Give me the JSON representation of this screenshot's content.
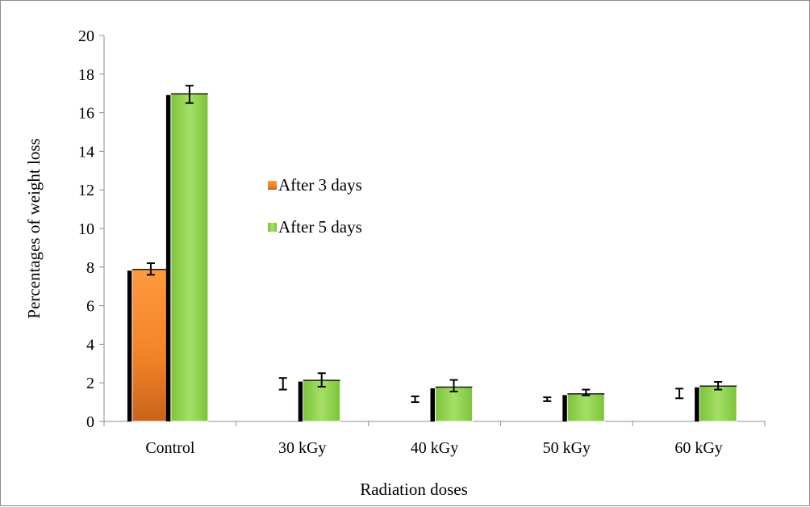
{
  "chart_data": {
    "type": "bar",
    "title": "",
    "xlabel": "Radiation doses",
    "ylabel": "Percentages of weight loss",
    "ylim": [
      0,
      20
    ],
    "yticks": [
      0,
      2,
      4,
      6,
      8,
      10,
      12,
      14,
      16,
      18,
      20
    ],
    "grid": false,
    "legend_position": "center-left",
    "categories": [
      "Control",
      "30 kGy",
      "40 kGy",
      "50 kGy",
      "60 kGy"
    ],
    "series": [
      {
        "name": "After 3 days",
        "color": "#f28a2a",
        "values": [
          7.9,
          0,
          0,
          0,
          0
        ],
        "errors": [
          0.3,
          0.3,
          0.15,
          0.1,
          0.25
        ],
        "error_centers": [
          7.9,
          1.95,
          1.15,
          1.15,
          1.45
        ]
      },
      {
        "name": "After 5 days",
        "color": "#8fd24a",
        "values": [
          17.0,
          2.15,
          1.8,
          1.45,
          1.85
        ],
        "errors": [
          0.45,
          0.35,
          0.3,
          0.15,
          0.2
        ],
        "error_centers": [
          16.95,
          2.15,
          1.85,
          1.5,
          1.85
        ]
      }
    ]
  }
}
